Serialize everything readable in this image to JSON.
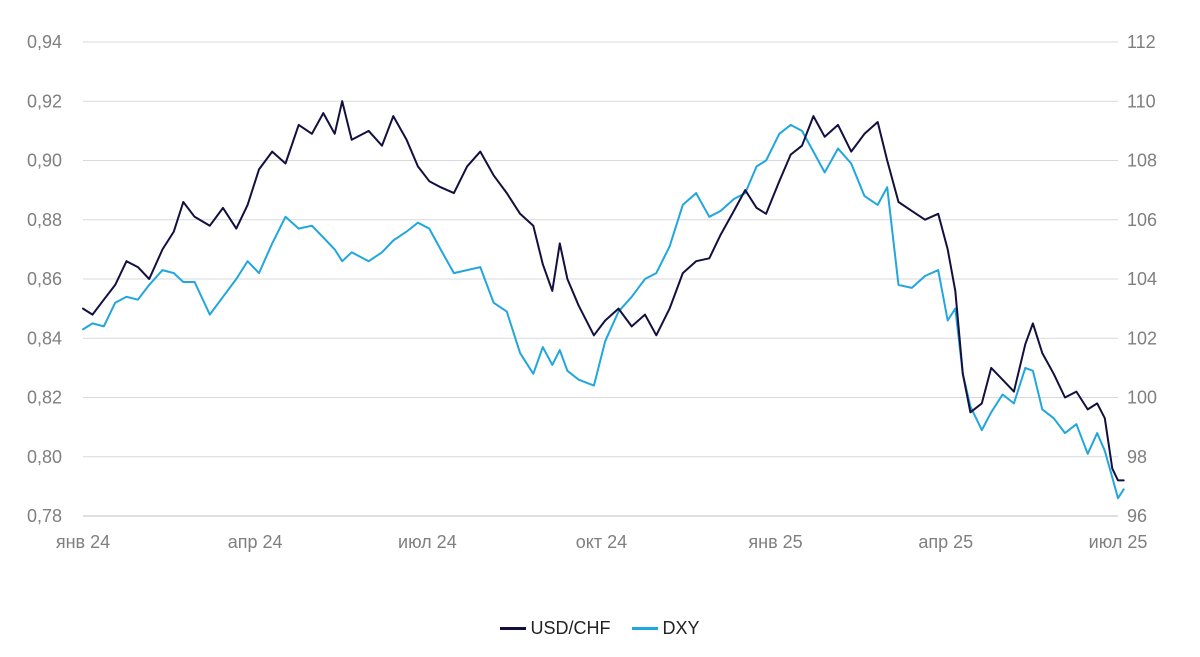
{
  "chart_data": {
    "type": "line",
    "title": "",
    "grid": true,
    "legend_position": "bottom",
    "x_range": [
      "2024-01-01",
      "2025-07-01"
    ],
    "x_ticks": [
      {
        "label": "янв 24",
        "date": "2024-01-01"
      },
      {
        "label": "апр 24",
        "date": "2024-04-01"
      },
      {
        "label": "июл 24",
        "date": "2024-07-01"
      },
      {
        "label": "окт 24",
        "date": "2024-10-01"
      },
      {
        "label": "янв 25",
        "date": "2025-01-01"
      },
      {
        "label": "апр 25",
        "date": "2025-04-01"
      },
      {
        "label": "июл 25",
        "date": "2025-07-01"
      }
    ],
    "y_left": {
      "range": [
        0.78,
        0.94
      ],
      "ticks": [
        "0,78",
        "0,80",
        "0,82",
        "0,84",
        "0,86",
        "0,88",
        "0,90",
        "0,92",
        "0,94"
      ]
    },
    "y_right": {
      "range": [
        96,
        112
      ],
      "ticks": [
        "96",
        "98",
        "100",
        "102",
        "104",
        "106",
        "108",
        "110",
        "112"
      ]
    },
    "series": [
      {
        "name": "USD/CHF",
        "axis": "left",
        "color": "#13103f",
        "points": [
          [
            "2024-01-01",
            0.85
          ],
          [
            "2024-01-06",
            0.848
          ],
          [
            "2024-01-12",
            0.853
          ],
          [
            "2024-01-18",
            0.858
          ],
          [
            "2024-01-24",
            0.866
          ],
          [
            "2024-01-30",
            0.864
          ],
          [
            "2024-02-05",
            0.86
          ],
          [
            "2024-02-12",
            0.87
          ],
          [
            "2024-02-18",
            0.876
          ],
          [
            "2024-02-23",
            0.886
          ],
          [
            "2024-02-29",
            0.881
          ],
          [
            "2024-03-08",
            0.878
          ],
          [
            "2024-03-15",
            0.884
          ],
          [
            "2024-03-22",
            0.877
          ],
          [
            "2024-03-28",
            0.885
          ],
          [
            "2024-04-03",
            0.897
          ],
          [
            "2024-04-10",
            0.903
          ],
          [
            "2024-04-17",
            0.899
          ],
          [
            "2024-04-24",
            0.912
          ],
          [
            "2024-05-01",
            0.909
          ],
          [
            "2024-05-07",
            0.916
          ],
          [
            "2024-05-13",
            0.909
          ],
          [
            "2024-05-17",
            0.92
          ],
          [
            "2024-05-22",
            0.907
          ],
          [
            "2024-05-31",
            0.91
          ],
          [
            "2024-06-07",
            0.905
          ],
          [
            "2024-06-13",
            0.915
          ],
          [
            "2024-06-20",
            0.907
          ],
          [
            "2024-06-26",
            0.898
          ],
          [
            "2024-07-02",
            0.893
          ],
          [
            "2024-07-08",
            0.891
          ],
          [
            "2024-07-15",
            0.889
          ],
          [
            "2024-07-22",
            0.898
          ],
          [
            "2024-07-29",
            0.903
          ],
          [
            "2024-08-05",
            0.895
          ],
          [
            "2024-08-12",
            0.889
          ],
          [
            "2024-08-19",
            0.882
          ],
          [
            "2024-08-26",
            0.878
          ],
          [
            "2024-08-31",
            0.865
          ],
          [
            "2024-09-05",
            0.856
          ],
          [
            "2024-09-09",
            0.872
          ],
          [
            "2024-09-13",
            0.86
          ],
          [
            "2024-09-19",
            0.851
          ],
          [
            "2024-09-27",
            0.841
          ],
          [
            "2024-10-03",
            0.846
          ],
          [
            "2024-10-10",
            0.85
          ],
          [
            "2024-10-17",
            0.844
          ],
          [
            "2024-10-24",
            0.848
          ],
          [
            "2024-10-30",
            0.841
          ],
          [
            "2024-11-06",
            0.85
          ],
          [
            "2024-11-13",
            0.862
          ],
          [
            "2024-11-20",
            0.866
          ],
          [
            "2024-11-27",
            0.867
          ],
          [
            "2024-12-03",
            0.875
          ],
          [
            "2024-12-10",
            0.883
          ],
          [
            "2024-12-16",
            0.89
          ],
          [
            "2024-12-22",
            0.884
          ],
          [
            "2024-12-27",
            0.882
          ],
          [
            "2025-01-03",
            0.893
          ],
          [
            "2025-01-09",
            0.902
          ],
          [
            "2025-01-15",
            0.905
          ],
          [
            "2025-01-21",
            0.915
          ],
          [
            "2025-01-27",
            0.908
          ],
          [
            "2025-02-03",
            0.912
          ],
          [
            "2025-02-10",
            0.903
          ],
          [
            "2025-02-17",
            0.909
          ],
          [
            "2025-02-24",
            0.913
          ],
          [
            "2025-03-01",
            0.9
          ],
          [
            "2025-03-07",
            0.886
          ],
          [
            "2025-03-14",
            0.883
          ],
          [
            "2025-03-21",
            0.88
          ],
          [
            "2025-03-28",
            0.882
          ],
          [
            "2025-04-02",
            0.87
          ],
          [
            "2025-04-06",
            0.856
          ],
          [
            "2025-04-10",
            0.828
          ],
          [
            "2025-04-14",
            0.815
          ],
          [
            "2025-04-20",
            0.818
          ],
          [
            "2025-04-25",
            0.83
          ],
          [
            "2025-05-01",
            0.826
          ],
          [
            "2025-05-07",
            0.822
          ],
          [
            "2025-05-13",
            0.838
          ],
          [
            "2025-05-17",
            0.845
          ],
          [
            "2025-05-22",
            0.835
          ],
          [
            "2025-05-28",
            0.828
          ],
          [
            "2025-06-03",
            0.82
          ],
          [
            "2025-06-09",
            0.822
          ],
          [
            "2025-06-15",
            0.816
          ],
          [
            "2025-06-20",
            0.818
          ],
          [
            "2025-06-24",
            0.813
          ],
          [
            "2025-06-28",
            0.796
          ],
          [
            "2025-07-01",
            0.792
          ],
          [
            "2025-07-04",
            0.792
          ]
        ]
      },
      {
        "name": "DXY",
        "axis": "right",
        "color": "#22a6de",
        "points": [
          [
            "2024-01-01",
            102.3
          ],
          [
            "2024-01-06",
            102.5
          ],
          [
            "2024-01-12",
            102.4
          ],
          [
            "2024-01-18",
            103.2
          ],
          [
            "2024-01-24",
            103.4
          ],
          [
            "2024-01-30",
            103.3
          ],
          [
            "2024-02-05",
            103.8
          ],
          [
            "2024-02-12",
            104.3
          ],
          [
            "2024-02-18",
            104.2
          ],
          [
            "2024-02-23",
            103.9
          ],
          [
            "2024-02-29",
            103.9
          ],
          [
            "2024-03-08",
            102.8
          ],
          [
            "2024-03-15",
            103.4
          ],
          [
            "2024-03-22",
            104.0
          ],
          [
            "2024-03-28",
            104.6
          ],
          [
            "2024-04-03",
            104.2
          ],
          [
            "2024-04-10",
            105.2
          ],
          [
            "2024-04-17",
            106.1
          ],
          [
            "2024-04-24",
            105.7
          ],
          [
            "2024-05-01",
            105.8
          ],
          [
            "2024-05-07",
            105.4
          ],
          [
            "2024-05-13",
            105.0
          ],
          [
            "2024-05-17",
            104.6
          ],
          [
            "2024-05-22",
            104.9
          ],
          [
            "2024-05-31",
            104.6
          ],
          [
            "2024-06-07",
            104.9
          ],
          [
            "2024-06-13",
            105.3
          ],
          [
            "2024-06-20",
            105.6
          ],
          [
            "2024-06-26",
            105.9
          ],
          [
            "2024-07-02",
            105.7
          ],
          [
            "2024-07-08",
            105.0
          ],
          [
            "2024-07-15",
            104.2
          ],
          [
            "2024-07-22",
            104.3
          ],
          [
            "2024-07-29",
            104.4
          ],
          [
            "2024-08-05",
            103.2
          ],
          [
            "2024-08-12",
            102.9
          ],
          [
            "2024-08-19",
            101.5
          ],
          [
            "2024-08-26",
            100.8
          ],
          [
            "2024-08-31",
            101.7
          ],
          [
            "2024-09-05",
            101.1
          ],
          [
            "2024-09-09",
            101.6
          ],
          [
            "2024-09-13",
            100.9
          ],
          [
            "2024-09-19",
            100.6
          ],
          [
            "2024-09-27",
            100.4
          ],
          [
            "2024-10-03",
            101.9
          ],
          [
            "2024-10-10",
            102.9
          ],
          [
            "2024-10-17",
            103.4
          ],
          [
            "2024-10-24",
            104.0
          ],
          [
            "2024-10-30",
            104.2
          ],
          [
            "2024-11-06",
            105.1
          ],
          [
            "2024-11-13",
            106.5
          ],
          [
            "2024-11-20",
            106.9
          ],
          [
            "2024-11-27",
            106.1
          ],
          [
            "2024-12-03",
            106.3
          ],
          [
            "2024-12-10",
            106.7
          ],
          [
            "2024-12-16",
            106.9
          ],
          [
            "2024-12-22",
            107.8
          ],
          [
            "2024-12-27",
            108.0
          ],
          [
            "2025-01-03",
            108.9
          ],
          [
            "2025-01-09",
            109.2
          ],
          [
            "2025-01-15",
            109.0
          ],
          [
            "2025-01-21",
            108.3
          ],
          [
            "2025-01-27",
            107.6
          ],
          [
            "2025-02-03",
            108.4
          ],
          [
            "2025-02-10",
            107.9
          ],
          [
            "2025-02-17",
            106.8
          ],
          [
            "2025-02-24",
            106.5
          ],
          [
            "2025-03-01",
            107.1
          ],
          [
            "2025-03-07",
            103.8
          ],
          [
            "2025-03-14",
            103.7
          ],
          [
            "2025-03-21",
            104.1
          ],
          [
            "2025-03-28",
            104.3
          ],
          [
            "2025-04-02",
            102.6
          ],
          [
            "2025-04-06",
            103.0
          ],
          [
            "2025-04-10",
            100.8
          ],
          [
            "2025-04-14",
            99.7
          ],
          [
            "2025-04-20",
            98.9
          ],
          [
            "2025-04-25",
            99.5
          ],
          [
            "2025-05-01",
            100.1
          ],
          [
            "2025-05-07",
            99.8
          ],
          [
            "2025-05-13",
            101.0
          ],
          [
            "2025-05-17",
            100.9
          ],
          [
            "2025-05-22",
            99.6
          ],
          [
            "2025-05-28",
            99.3
          ],
          [
            "2025-06-03",
            98.8
          ],
          [
            "2025-06-09",
            99.1
          ],
          [
            "2025-06-15",
            98.1
          ],
          [
            "2025-06-20",
            98.8
          ],
          [
            "2025-06-24",
            98.2
          ],
          [
            "2025-06-28",
            97.3
          ],
          [
            "2025-07-01",
            96.6
          ],
          [
            "2025-07-04",
            96.9
          ]
        ]
      }
    ]
  }
}
